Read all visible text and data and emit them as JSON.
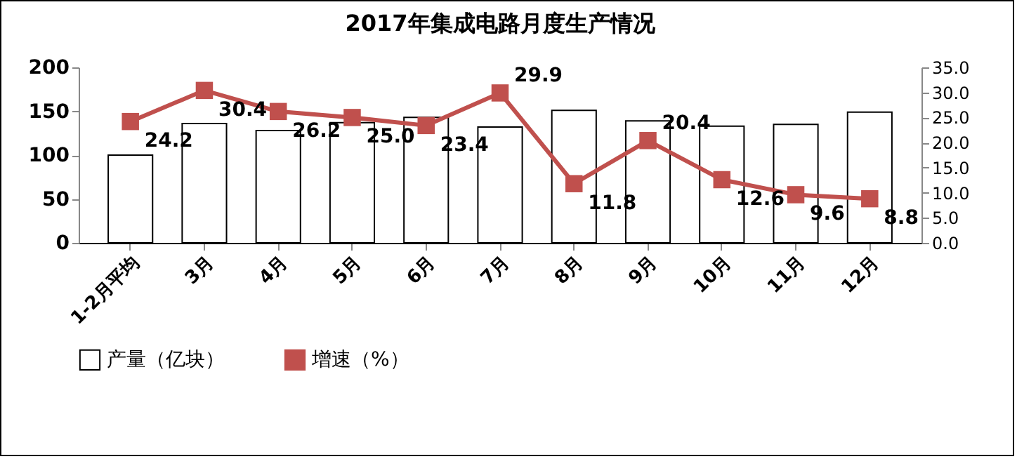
{
  "chart_data": {
    "type": "bar",
    "title": "2017年集成电路月度生产情况",
    "categories": [
      "1-2月平均",
      "3月",
      "4月",
      "5月",
      "6月",
      "7月",
      "8月",
      "9月",
      "10月",
      "11月",
      "12月"
    ],
    "series": [
      {
        "name": "产量（亿块）",
        "color": "#ffffff",
        "values": [
          100,
          136,
          128,
          137,
          143,
          132,
          151,
          139,
          133,
          135,
          149
        ]
      },
      {
        "name": "增速（%）",
        "type": "line",
        "axis": "y2",
        "color": "#c0504d",
        "marker": "square",
        "values": [
          24.2,
          30.4,
          26.2,
          25.0,
          23.4,
          29.9,
          11.8,
          20.4,
          12.6,
          9.6,
          8.8
        ],
        "value_labels": [
          "24.2",
          "30.4",
          "26.2",
          "25.0",
          "23.4",
          "29.9",
          "11.8",
          "20.4",
          "12.6",
          "9.6",
          "8.8"
        ]
      }
    ],
    "ylim": [
      0,
      200
    ],
    "yticks": [
      0,
      50,
      100,
      150,
      200
    ],
    "y2lim": [
      0,
      35
    ],
    "y2ticks": [
      {
        "value": 0,
        "label": "0.0"
      },
      {
        "value": 5,
        "label": "5.0"
      },
      {
        "value": 10,
        "label": "10.0"
      },
      {
        "value": 15,
        "label": "15.0"
      },
      {
        "value": 20,
        "label": "20.0"
      },
      {
        "value": 25,
        "label": "25.0"
      },
      {
        "value": 30,
        "label": "30.0"
      },
      {
        "value": 35,
        "label": "35.0"
      }
    ],
    "grid": false,
    "legend": "bottom"
  }
}
